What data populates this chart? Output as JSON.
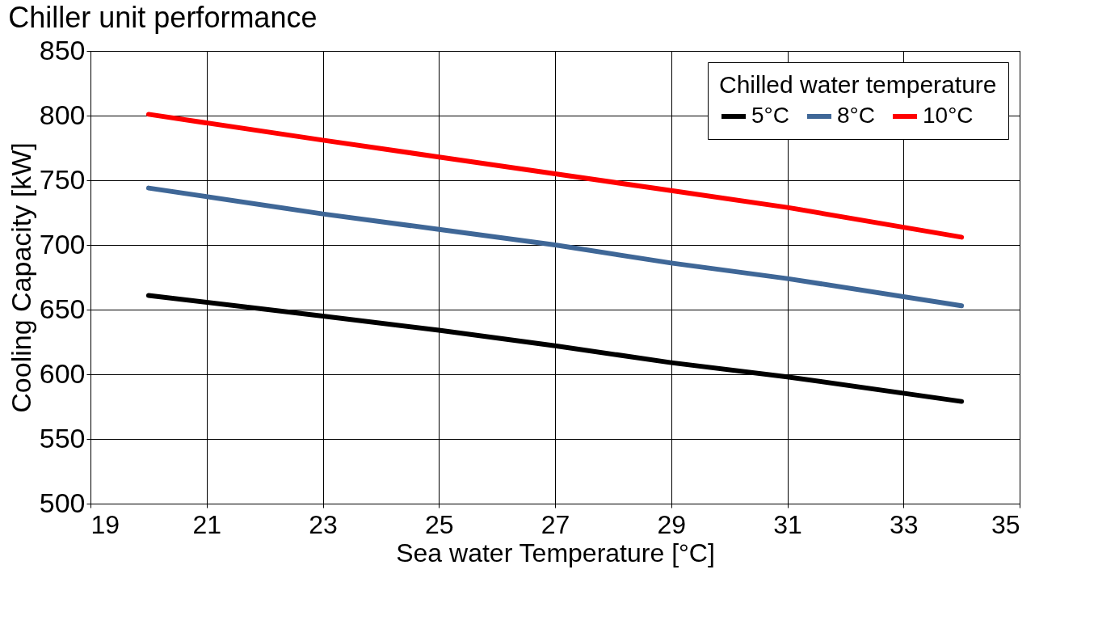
{
  "chart_data": {
    "type": "line",
    "title": "Chiller unit performance",
    "xlabel": "Sea water Temperature [°C]",
    "ylabel": "Cooling Capacity [kW]",
    "legend_title": "Chilled water temperature",
    "series": [
      {
        "name": "5°C",
        "color": "#000000",
        "x": [
          20,
          23,
          25,
          27,
          29,
          31,
          34
        ],
        "values": [
          661,
          645,
          634,
          622,
          609,
          598,
          579
        ]
      },
      {
        "name": "8°C",
        "color": "#3f6797",
        "x": [
          20,
          23,
          25,
          27,
          29,
          31,
          34
        ],
        "values": [
          744,
          724,
          712,
          700,
          686,
          674,
          653
        ]
      },
      {
        "name": "10°C",
        "color": "#ff0000",
        "x": [
          20,
          23,
          25,
          27,
          29,
          31,
          34
        ],
        "values": [
          801,
          781,
          768,
          755,
          742,
          729,
          706
        ]
      }
    ],
    "xlim": [
      19,
      35
    ],
    "xticks": [
      19,
      21,
      23,
      25,
      27,
      29,
      31,
      33,
      35
    ],
    "ylim": [
      500,
      850
    ],
    "yticks": [
      500,
      550,
      600,
      650,
      700,
      750,
      800,
      850
    ],
    "grid": true,
    "legend": "top right"
  }
}
